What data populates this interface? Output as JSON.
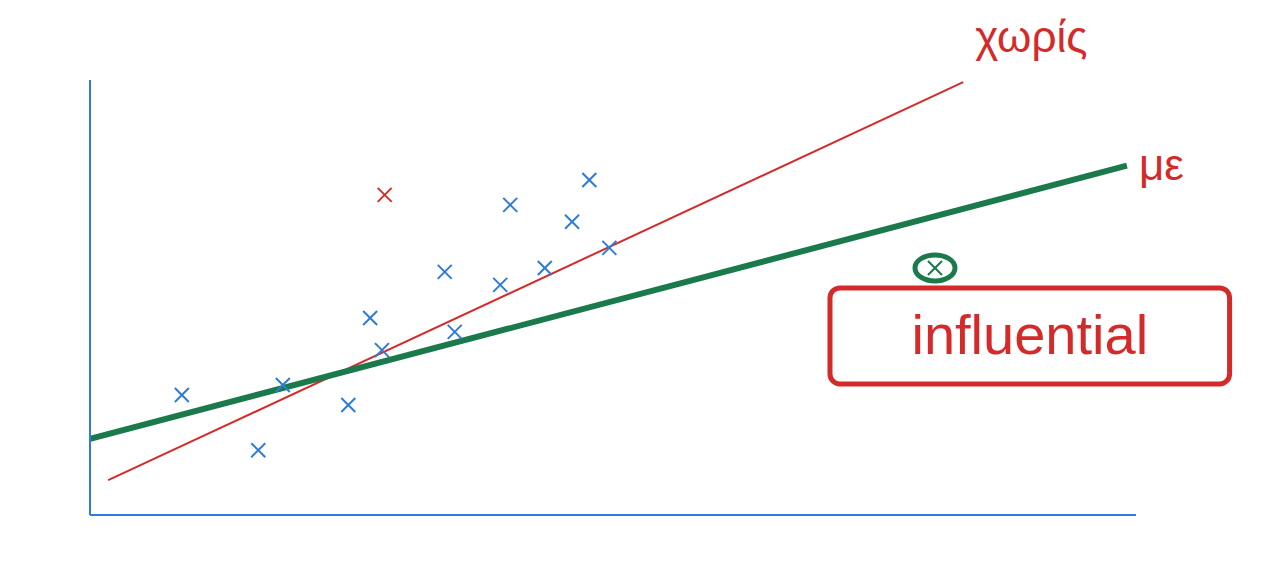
{
  "chart_data": {
    "type": "scatter",
    "xlim": [
      0,
      115
    ],
    "ylim": [
      0,
      100
    ],
    "xticks": [],
    "yticks": [],
    "tick_labels": false,
    "grid": false,
    "series": [
      {
        "type": "scatter",
        "color": "#2f7bd8",
        "marker": "x",
        "x": [
          10.1,
          21.2,
          18.5,
          30.8,
          32.1,
          28.4,
          39.0,
          40.1,
          46.2,
          53.0,
          54.9,
          50.0,
          57.1,
          45.1
        ],
        "y": [
          27.6,
          29.9,
          14.9,
          45.3,
          37.9,
          25.3,
          55.9,
          42.1,
          71.3,
          67.4,
          77.0,
          56.8,
          61.4,
          52.9
        ]
      },
      {
        "type": "scatter",
        "color": "#d42a2a",
        "marker": "x",
        "x": [
          32.4
        ],
        "y": [
          73.6
        ]
      },
      {
        "type": "scatter",
        "color": "#1a7a4c",
        "marker": "circled_x",
        "x": [
          92.9
        ],
        "y": [
          56.8
        ],
        "annotation": "influential"
      },
      {
        "type": "line",
        "name": "χωρίς",
        "color": "#d42a2a",
        "line_style": "thin",
        "x": [
          2,
          96
        ],
        "y": [
          8,
          99.5
        ]
      },
      {
        "type": "line",
        "name": "με",
        "color": "#1a7a4c",
        "line_style": "thick",
        "x": [
          0,
          114
        ],
        "y": [
          17.5,
          80.3
        ]
      }
    ]
  }
}
